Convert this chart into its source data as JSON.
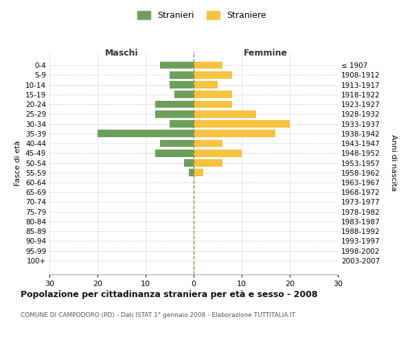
{
  "age_groups": [
    "0-4",
    "5-9",
    "10-14",
    "15-19",
    "20-24",
    "25-29",
    "30-34",
    "35-39",
    "40-44",
    "45-49",
    "50-54",
    "55-59",
    "60-64",
    "65-69",
    "70-74",
    "75-79",
    "80-84",
    "85-89",
    "90-94",
    "95-99",
    "100+"
  ],
  "birth_years": [
    "2003-2007",
    "1998-2002",
    "1993-1997",
    "1988-1992",
    "1983-1987",
    "1978-1982",
    "1973-1977",
    "1968-1972",
    "1963-1967",
    "1958-1962",
    "1953-1957",
    "1948-1952",
    "1943-1947",
    "1938-1942",
    "1933-1937",
    "1928-1932",
    "1923-1927",
    "1918-1922",
    "1913-1917",
    "1908-1912",
    "≤ 1907"
  ],
  "maschi": [
    7,
    5,
    5,
    4,
    8,
    8,
    5,
    20,
    7,
    8,
    2,
    1,
    0,
    0,
    0,
    0,
    0,
    0,
    0,
    0,
    0
  ],
  "femmine": [
    6,
    8,
    5,
    8,
    8,
    13,
    20,
    17,
    6,
    10,
    6,
    2,
    0,
    0,
    0,
    0,
    0,
    0,
    0,
    0,
    0
  ],
  "maschi_color": "#6d9f5c",
  "femmine_color": "#f5c242",
  "center_line_color": "#888855",
  "background_color": "#ffffff",
  "grid_color": "#cccccc",
  "xlim": 30,
  "title": "Popolazione per cittadinanza straniera per età e sesso - 2008",
  "subtitle": "COMUNE DI CAMPODORO (PD) - Dati ISTAT 1° gennaio 2008 - Elaborazione TUTTITALIA.IT",
  "ylabel_left": "Fasce di età",
  "ylabel_right": "Anni di nascita",
  "legend_maschi": "Stranieri",
  "legend_femmine": "Straniere",
  "header_left": "Maschi",
  "header_right": "Femmine"
}
